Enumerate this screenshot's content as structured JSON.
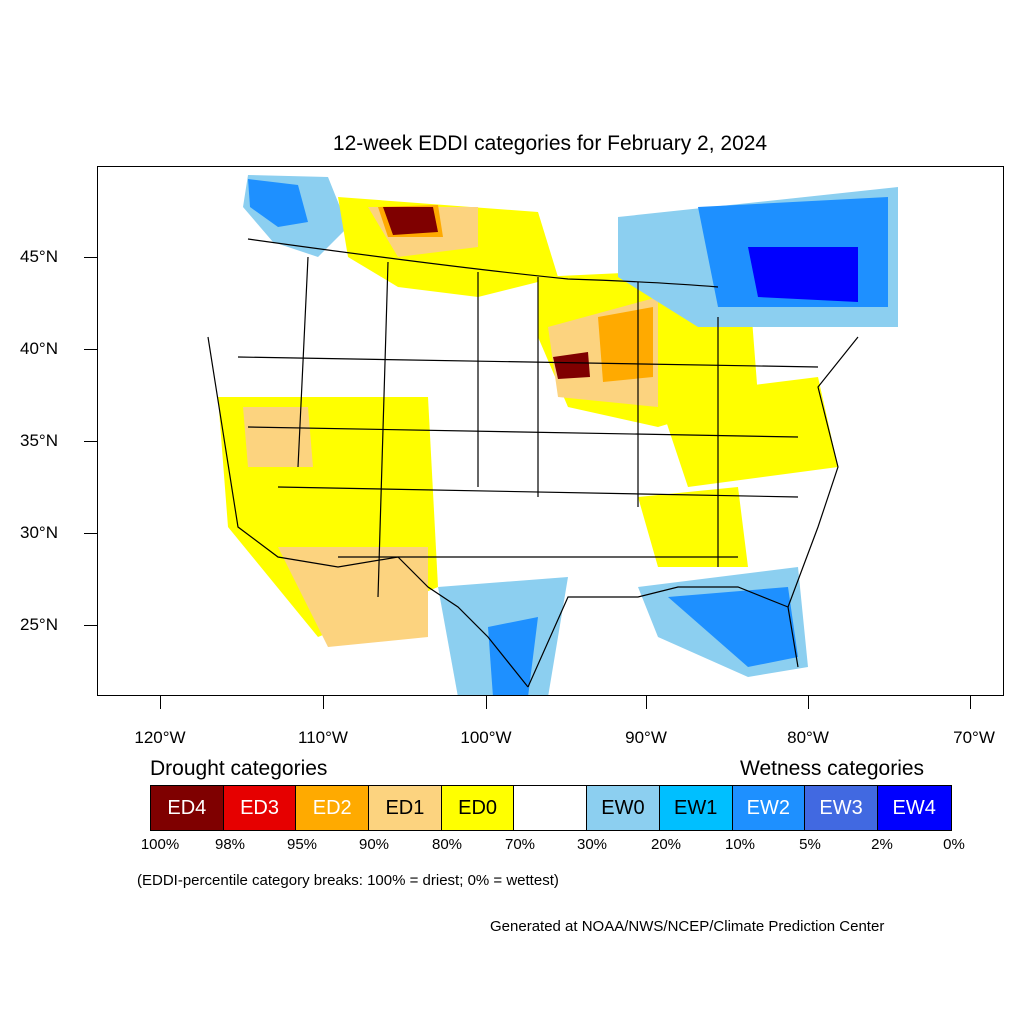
{
  "title": "12-week EDDI categories for February 2, 2024",
  "map": {
    "lat_labels": [
      "45°N",
      "40°N",
      "35°N",
      "30°N",
      "25°N"
    ],
    "lon_labels": [
      "120°W",
      "110°W",
      "100°W",
      "90°W",
      "80°W",
      "70°W"
    ],
    "region": "Contiguous United States"
  },
  "legend": {
    "drought_heading": "Drought categories",
    "wetness_heading": "Wetness categories",
    "categories": [
      {
        "label": "ED4",
        "color": "#7f0000",
        "text_color": "#ffffff"
      },
      {
        "label": "ED3",
        "color": "#e60000",
        "text_color": "#ffffff"
      },
      {
        "label": "ED2",
        "color": "#ffaa00",
        "text_color": "#ffffff"
      },
      {
        "label": "ED1",
        "color": "#fcd37f",
        "text_color": "#000000"
      },
      {
        "label": "ED0",
        "color": "#ffff00",
        "text_color": "#000000"
      },
      {
        "label": "",
        "color": "#ffffff",
        "text_color": "#000000"
      },
      {
        "label": "EW0",
        "color": "#8ccff0",
        "text_color": "#000000"
      },
      {
        "label": "EW1",
        "color": "#00bfff",
        "text_color": "#000000"
      },
      {
        "label": "EW2",
        "color": "#1e90ff",
        "text_color": "#ffffff"
      },
      {
        "label": "EW3",
        "color": "#4169e1",
        "text_color": "#ffffff"
      },
      {
        "label": "EW4",
        "color": "#0000ff",
        "text_color": "#ffffff"
      }
    ],
    "breaks": [
      "100%",
      "98%",
      "95%",
      "90%",
      "80%",
      "70%",
      "30%",
      "20%",
      "10%",
      "5%",
      "2%",
      "0%"
    ]
  },
  "note": "(EDDI-percentile category breaks: 100% = driest; 0% = wettest)",
  "credit": "Generated at NOAA/NWS/NCEP/Climate Prediction Center"
}
